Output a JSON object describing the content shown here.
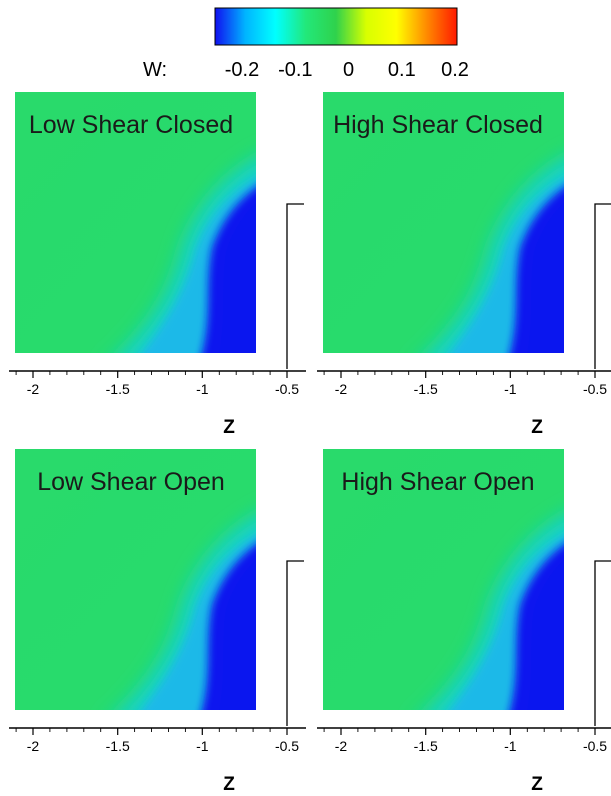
{
  "colors": {
    "field_background": "#26dc6b",
    "wake_core": "#0a16ef",
    "axis_line": "#000000",
    "colormap": [
      "#1010f0",
      "#00b4ff",
      "#00ffff",
      "#22e87a",
      "#2fd24c",
      "#d8ff00",
      "#ffff00",
      "#ff8a00",
      "#ff1a00"
    ]
  },
  "colorbar": {
    "variable_label": "W:",
    "tick_labels": [
      "-0.2",
      "-0.1",
      "0",
      "0.1",
      "0.2"
    ],
    "range": [
      -0.2,
      0.2
    ]
  },
  "chart_data": [
    {
      "type": "heatmap",
      "title": "Low Shear Closed",
      "xlabel": "Z",
      "x_ticks": [
        "-2",
        "-1.5",
        "-1",
        "-0.5"
      ],
      "xlim": [
        -2.1,
        -0.5
      ],
      "variable": "W",
      "field_value": 0,
      "wake_value": -0.2
    },
    {
      "type": "heatmap",
      "title": "High Shear Closed",
      "xlabel": "Z",
      "x_ticks": [
        "-2",
        "-1.5",
        "-1",
        "-0.5"
      ],
      "xlim": [
        -2.1,
        -0.5
      ],
      "variable": "W",
      "field_value": 0,
      "wake_value": -0.2
    },
    {
      "type": "heatmap",
      "title": "Low Shear Open",
      "xlabel": "Z",
      "x_ticks": [
        "-2",
        "-1.5",
        "-1",
        "-0.5"
      ],
      "xlim": [
        -2.1,
        -0.5
      ],
      "variable": "W",
      "field_value": 0,
      "wake_value": -0.2
    },
    {
      "type": "heatmap",
      "title": "High Shear Open",
      "xlabel": "Z",
      "x_ticks": [
        "-2",
        "-1.5",
        "-1",
        "-0.5"
      ],
      "xlim": [
        -2.1,
        -0.5
      ],
      "variable": "W",
      "field_value": 0,
      "wake_value": -0.2
    }
  ]
}
